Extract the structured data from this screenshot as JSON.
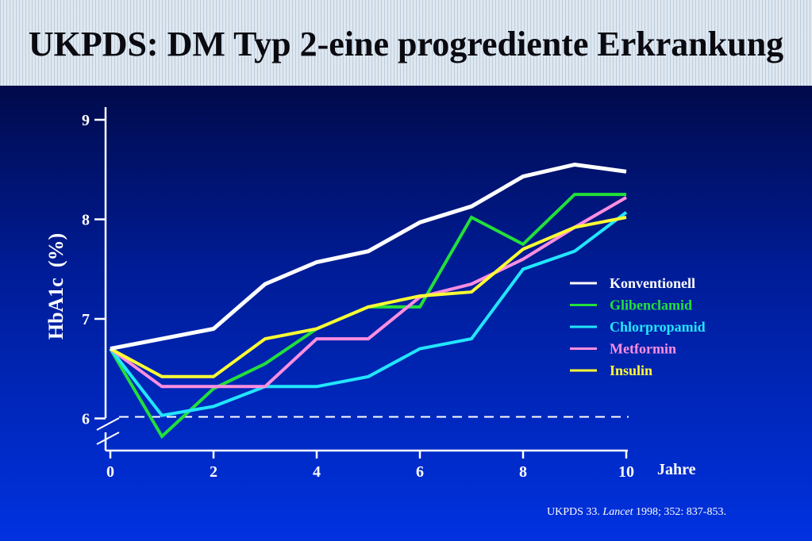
{
  "title": "UKPDS: DM Typ 2-eine progrediente Erkrankung",
  "source": {
    "prefix": "UKPDS 33. ",
    "journal": "Lancet",
    "suffix": " 1998; 352: 837-853."
  },
  "colors": {
    "background_top": "#000a4a",
    "background_bottom": "#0032e0",
    "header": "#dfe8f0"
  },
  "chart_data": {
    "type": "line",
    "xlabel": "Jahre",
    "ylabel": "HbA1c  (%)",
    "x": [
      0,
      1,
      2,
      3,
      4,
      5,
      6,
      7,
      8,
      9,
      10
    ],
    "xticks": [
      0,
      2,
      4,
      6,
      8,
      10
    ],
    "yticks": [
      6,
      7,
      8,
      9
    ],
    "xlim": [
      0,
      10
    ],
    "ylim": [
      6,
      9
    ],
    "y_axis_break": true,
    "reference_line": {
      "y": 6.0,
      "style": "dashed",
      "color": "#ffffff"
    },
    "legend_position": "right",
    "grid": false,
    "series": [
      {
        "name": "Konventionell",
        "color": "#ffffff",
        "values": [
          6.7,
          6.8,
          6.9,
          7.35,
          7.57,
          7.68,
          7.97,
          8.13,
          8.43,
          8.55,
          8.48
        ]
      },
      {
        "name": "Glibenclamid",
        "color": "#22e03a",
        "values": [
          6.7,
          5.82,
          6.3,
          6.55,
          6.9,
          7.12,
          7.12,
          8.02,
          7.75,
          8.25,
          8.25
        ]
      },
      {
        "name": "Chlorpropamid",
        "color": "#22e6ff",
        "values": [
          6.7,
          6.03,
          6.12,
          6.32,
          6.32,
          6.42,
          6.7,
          6.8,
          7.5,
          7.68,
          8.07
        ]
      },
      {
        "name": "Metformin",
        "color": "#ff8ee0",
        "values": [
          6.7,
          6.32,
          6.32,
          6.32,
          6.8,
          6.8,
          7.22,
          7.35,
          7.6,
          7.92,
          8.22
        ]
      },
      {
        "name": "Insulin",
        "color": "#ffff33",
        "values": [
          6.7,
          6.42,
          6.42,
          6.8,
          6.9,
          7.12,
          7.23,
          7.27,
          7.7,
          7.92,
          8.02
        ]
      }
    ]
  }
}
